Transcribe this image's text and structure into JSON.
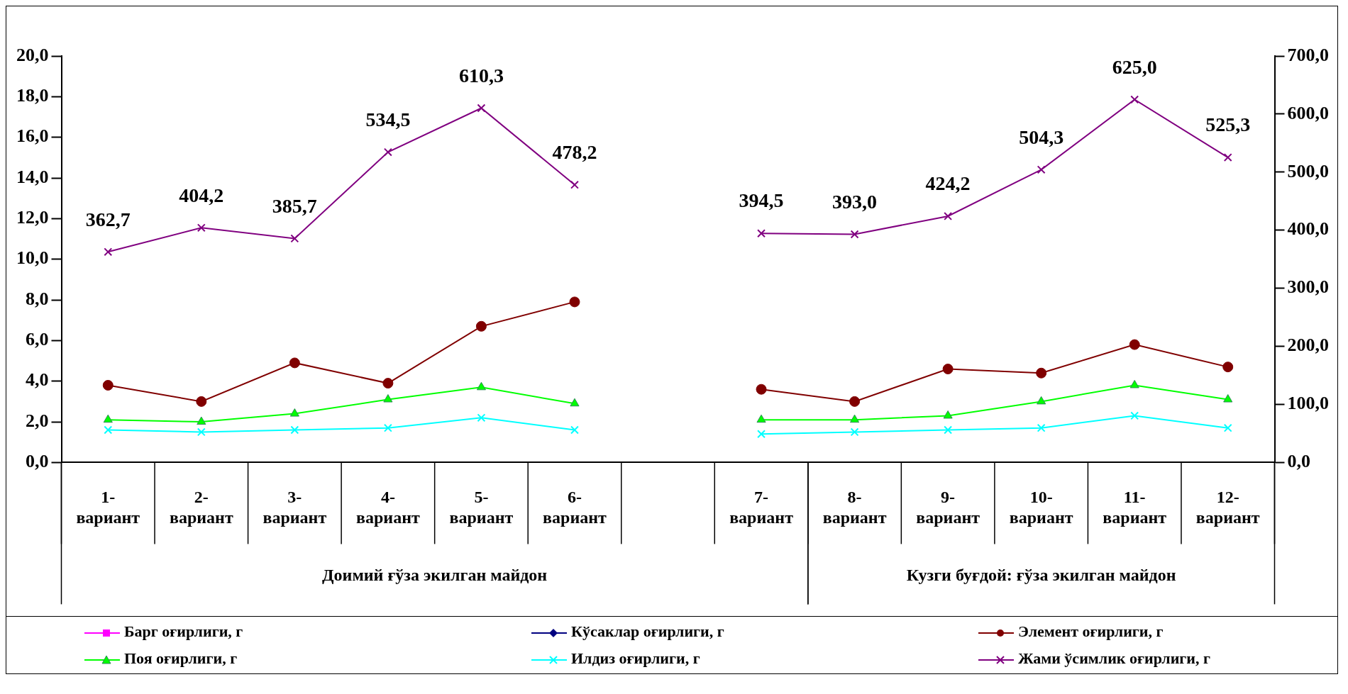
{
  "chart_data": {
    "type": "line",
    "categories": [
      "1- вариант",
      "2- вариант",
      "3- вариант",
      "4- вариант",
      "5- вариант",
      "6- вариант",
      null,
      "7- вариант",
      "8- вариант",
      "9- вариант",
      "10- вариант",
      "11- вариант",
      "12- вариант"
    ],
    "series": [
      {
        "name": "Барг оғирлиги, г",
        "color": "#ff00ff",
        "marker": "square",
        "values": [
          null,
          null,
          null,
          null,
          null,
          null,
          null,
          null,
          null,
          null,
          null,
          null,
          null
        ]
      },
      {
        "name": "Кўсаклар оғирлиги, г",
        "color": "#000080",
        "marker": "diamond",
        "values": [
          null,
          null,
          null,
          null,
          null,
          null,
          null,
          null,
          null,
          null,
          null,
          null,
          null
        ]
      },
      {
        "name": "Элемент оғирлиги, г",
        "color": "#800000",
        "marker": "circle",
        "values": [
          3.8,
          3.0,
          4.9,
          3.9,
          6.7,
          7.9,
          null,
          3.6,
          3.0,
          4.6,
          4.4,
          5.8,
          4.7
        ]
      },
      {
        "name": "Поя оғирлиги, г",
        "color": "#00ff00",
        "marker": "triangle",
        "values": [
          2.1,
          2.0,
          2.4,
          3.1,
          3.7,
          2.9,
          null,
          2.1,
          2.1,
          2.3,
          3.0,
          3.8,
          3.1
        ]
      },
      {
        "name": "Илдиз оғирлиги, г",
        "color": "#00ffff",
        "marker": "cross",
        "values": [
          1.6,
          1.5,
          1.6,
          1.7,
          2.2,
          1.6,
          null,
          1.4,
          1.5,
          1.6,
          1.7,
          2.3,
          1.7
        ]
      },
      {
        "name": "Жами ўсимлик оғирлиги, г",
        "color": "#800080",
        "marker": "cross",
        "axis": "y2",
        "values": [
          362.7,
          404.2,
          385.7,
          534.5,
          610.3,
          478.2,
          null,
          394.5,
          393.0,
          424.2,
          504.3,
          625.0,
          525.3
        ],
        "value_labels": [
          "362,7",
          "404,2",
          "385,7",
          "534,5",
          "610,3",
          "478,2",
          null,
          "394,5",
          "393,0",
          "424,2",
          "504,3",
          "625,0",
          "525,3"
        ]
      }
    ],
    "ylim": [
      0,
      20
    ],
    "yticks": [
      {
        "value": 0,
        "label": "0,0"
      },
      {
        "value": 2,
        "label": "2,0"
      },
      {
        "value": 4,
        "label": "4,0"
      },
      {
        "value": 6,
        "label": "6,0"
      },
      {
        "value": 8,
        "label": "8,0"
      },
      {
        "value": 10,
        "label": "10,0"
      },
      {
        "value": 12,
        "label": "12,0"
      },
      {
        "value": 14,
        "label": "14,0"
      },
      {
        "value": 16,
        "label": "16,0"
      },
      {
        "value": 18,
        "label": "18,0"
      },
      {
        "value": 20,
        "label": "20,0"
      }
    ],
    "y2lim": [
      0,
      700
    ],
    "y2ticks": [
      {
        "value": 0,
        "label": "0,0"
      },
      {
        "value": 100,
        "label": "100,0"
      },
      {
        "value": 200,
        "label": "200,0"
      },
      {
        "value": 300,
        "label": "300,0"
      },
      {
        "value": 400,
        "label": "400,0"
      },
      {
        "value": 500,
        "label": "500,0"
      },
      {
        "value": 600,
        "label": "600,0"
      },
      {
        "value": 700,
        "label": "700,0"
      }
    ],
    "annotations": [
      "Доимий ғўза экилган майдон",
      "Кузги буғдой: ғўза экилган майдон"
    ],
    "legend": "bottom"
  }
}
